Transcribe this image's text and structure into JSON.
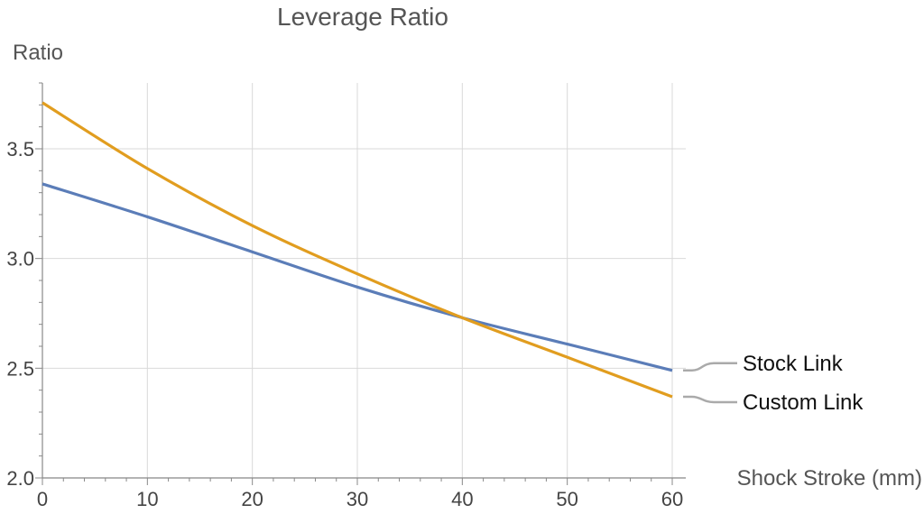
{
  "chart_data": {
    "type": "line",
    "title": "Leverage Ratio",
    "xlabel": "Shock Stroke (mm)",
    "ylabel": "Ratio",
    "xlim": [
      0,
      60
    ],
    "ylim": [
      2.0,
      3.8
    ],
    "xticks": [
      0,
      10,
      20,
      30,
      40,
      50,
      60
    ],
    "yticks": [
      2.0,
      2.5,
      3.0,
      3.5
    ],
    "grid": true,
    "legend_placement": "right, at line ends",
    "series": [
      {
        "name": "Stock Link",
        "color": "#5B7DB8",
        "x": [
          0,
          10,
          20,
          30,
          40,
          50,
          60
        ],
        "values": [
          3.34,
          3.19,
          3.03,
          2.87,
          2.73,
          2.61,
          2.49
        ]
      },
      {
        "name": "Custom Link",
        "color": "#E19D1F",
        "x": [
          0,
          10,
          20,
          30,
          40,
          50,
          60
        ],
        "values": [
          3.71,
          3.41,
          3.15,
          2.93,
          2.73,
          2.55,
          2.37
        ]
      }
    ]
  }
}
